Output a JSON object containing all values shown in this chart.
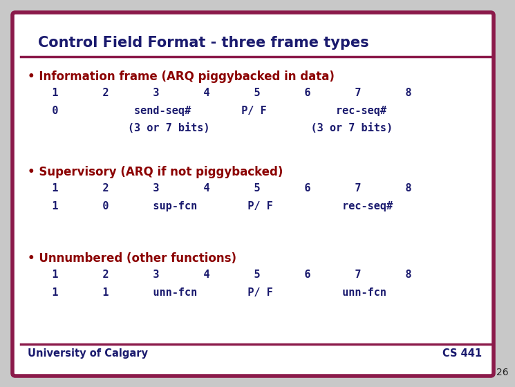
{
  "title": "Control Field Format - three frame types",
  "title_color": "#1a1a6e",
  "bg_color": "#ffffff",
  "border_color": "#8b1a4a",
  "slide_bg": "#c8c8c8",
  "mono_color": "#1a1a6e",
  "footer_left": "University of Calgary",
  "footer_right": "CS 441",
  "slide_number": "26",
  "bullet_color": "#8b0000",
  "sections": [
    {
      "bullet": "Information frame (ARQ piggybacked in data)",
      "row1": "   1       2       3       4       5       6       7       8",
      "row2": "   0            send-seq#        P/ F           rec-seq#",
      "row3": "               (3 or 7 bits)                (3 or 7 bits)"
    },
    {
      "bullet": "Supervisory (ARQ if not piggybacked)",
      "row1": "   1       2       3       4       5       6       7       8",
      "row2": "   1       0       sup-fcn        P/ F           rec-seq#",
      "row3": ""
    },
    {
      "bullet": "Unnumbered (other functions)",
      "row1": "   1       2       3       4       5       6       7       8",
      "row2": "   1       1       unn-fcn        P/ F           unn-fcn",
      "row3": ""
    }
  ]
}
